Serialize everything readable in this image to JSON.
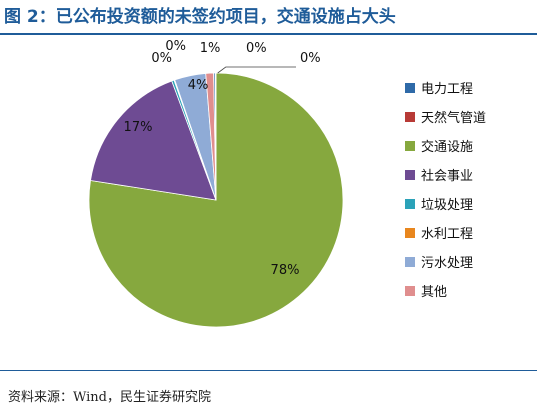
{
  "figure": {
    "title": "图 2：已公布投资额的未签约项目，交通设施占大头",
    "source": "资料来源：Wind，民生证券研究院"
  },
  "chart_data": {
    "type": "pie",
    "categories": [
      "电力工程",
      "天然气管道",
      "交通设施",
      "社会事业",
      "垃圾处理",
      "水利工程",
      "污水处理",
      "其他"
    ],
    "values": [
      0.2,
      0.1,
      78,
      17,
      0.3,
      0.1,
      4,
      1
    ],
    "labels": [
      "0%",
      "0%",
      "78%",
      "17%",
      "0%",
      "0%",
      "4%",
      "1%"
    ],
    "colors": [
      "#2e6aa8",
      "#b83a36",
      "#86a83e",
      "#6e4b93",
      "#2ba2b8",
      "#e8861e",
      "#8fabd6",
      "#e08e8e"
    ],
    "legend_position": "right",
    "title": ""
  }
}
